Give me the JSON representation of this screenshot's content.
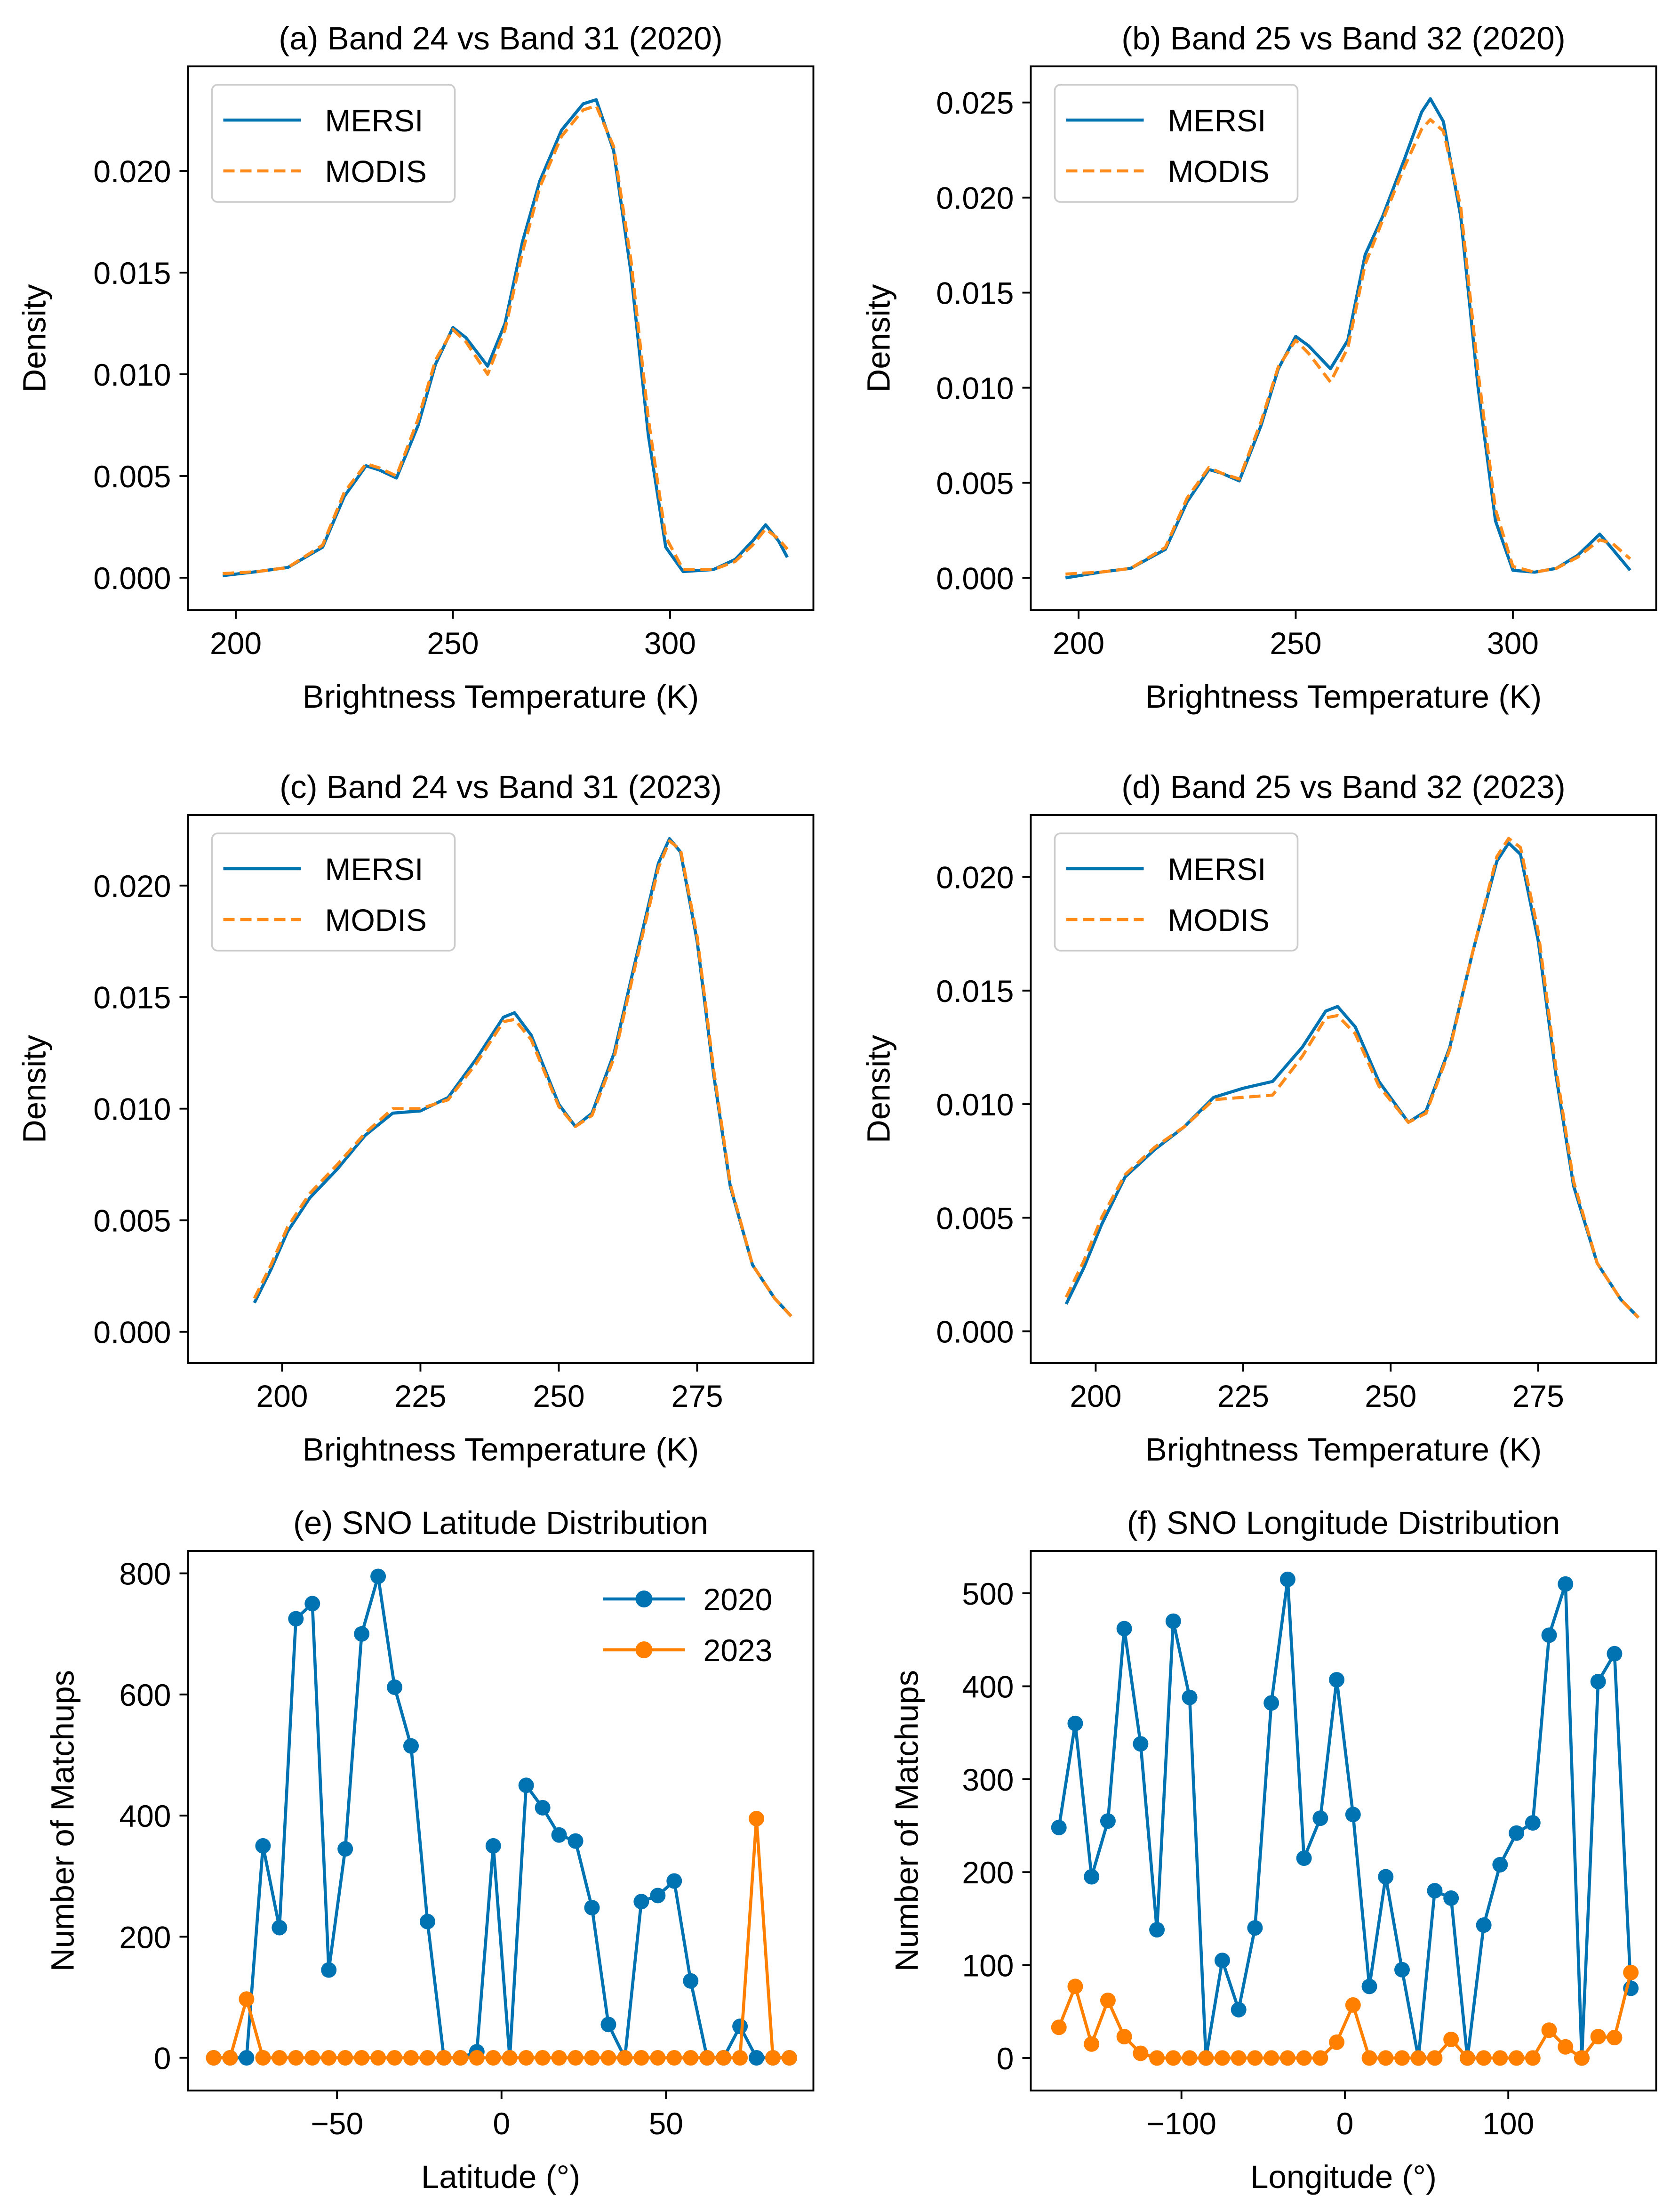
{
  "chart_data": [
    {
      "type": "line",
      "title": "(a) Band 24 vs Band 31 (2020)",
      "xlabel": "Brightness Temperature (K)",
      "ylabel": "Density",
      "xlim": [
        189,
        333
      ],
      "ylim": [
        -0.0016,
        0.02514
      ],
      "xticks": [
        200,
        250,
        300
      ],
      "xtick_labels": [
        "200",
        "250",
        "300"
      ],
      "yticks": [
        0,
        0.005,
        0.01,
        0.015,
        0.02
      ],
      "ytick_labels": [
        "0.000",
        "0.005",
        "0.010",
        "0.015",
        "0.020"
      ],
      "legend": "top-left",
      "series": [
        {
          "name": "MERSI",
          "color": "#0173b2",
          "style": "solid",
          "x": [
            197,
            205,
            212,
            220,
            225,
            230,
            233,
            237,
            242,
            246,
            250,
            253,
            258,
            262,
            266,
            270,
            275,
            280,
            283,
            287,
            291,
            295,
            299,
            303,
            310,
            315,
            319,
            322,
            325,
            327
          ],
          "y": [
            0.0001,
            0.0003,
            0.0005,
            0.0015,
            0.004,
            0.0055,
            0.0053,
            0.0049,
            0.0075,
            0.0105,
            0.0123,
            0.0118,
            0.0104,
            0.0125,
            0.0165,
            0.0195,
            0.022,
            0.0233,
            0.0235,
            0.021,
            0.015,
            0.007,
            0.0015,
            0.0003,
            0.0004,
            0.0009,
            0.0018,
            0.0026,
            0.0018,
            0.001
          ]
        },
        {
          "name": "MODIS",
          "color": "#ff8c1a",
          "style": "dashed",
          "x": [
            197,
            205,
            212,
            220,
            225,
            230,
            233,
            237,
            242,
            246,
            250,
            253,
            258,
            262,
            266,
            270,
            275,
            280,
            283,
            287,
            291,
            295,
            299,
            303,
            310,
            315,
            319,
            322,
            325,
            327
          ],
          "y": [
            0.0002,
            0.0003,
            0.0005,
            0.0016,
            0.0042,
            0.0056,
            0.0054,
            0.005,
            0.0078,
            0.0107,
            0.0122,
            0.0116,
            0.01,
            0.0122,
            0.016,
            0.0192,
            0.0217,
            0.023,
            0.0232,
            0.0212,
            0.0156,
            0.0078,
            0.002,
            0.0004,
            0.0004,
            0.0008,
            0.0016,
            0.0024,
            0.0019,
            0.0014
          ]
        }
      ]
    },
    {
      "type": "line",
      "title": "(b) Band 25 vs Band 32 (2020)",
      "xlabel": "Brightness Temperature (K)",
      "ylabel": "Density",
      "xlim": [
        189,
        333
      ],
      "ylim": [
        -0.0017,
        0.0269
      ],
      "xticks": [
        200,
        250,
        300
      ],
      "xtick_labels": [
        "200",
        "250",
        "300"
      ],
      "yticks": [
        0,
        0.005,
        0.01,
        0.015,
        0.02,
        0.025
      ],
      "ytick_labels": [
        "0.000",
        "0.005",
        "0.010",
        "0.015",
        "0.020",
        "0.025"
      ],
      "legend": "top-left",
      "series": [
        {
          "name": "MERSI",
          "color": "#0173b2",
          "style": "solid",
          "x": [
            197,
            205,
            212,
            220,
            225,
            230,
            233,
            237,
            242,
            246,
            250,
            253,
            258,
            262,
            266,
            270,
            275,
            279,
            281,
            284,
            288,
            292,
            296,
            300,
            305,
            310,
            315,
            320,
            323,
            327
          ],
          "y": [
            0.0,
            0.0003,
            0.0005,
            0.0015,
            0.004,
            0.0057,
            0.0055,
            0.0051,
            0.008,
            0.011,
            0.0127,
            0.0122,
            0.011,
            0.0125,
            0.017,
            0.019,
            0.022,
            0.0245,
            0.0252,
            0.024,
            0.019,
            0.01,
            0.003,
            0.0004,
            0.0003,
            0.0005,
            0.0012,
            0.0023,
            0.0015,
            0.0004
          ]
        },
        {
          "name": "MODIS",
          "color": "#ff8c1a",
          "style": "dashed",
          "x": [
            197,
            205,
            212,
            220,
            225,
            230,
            233,
            237,
            242,
            246,
            250,
            253,
            258,
            262,
            266,
            270,
            275,
            279,
            281,
            284,
            288,
            292,
            296,
            300,
            305,
            310,
            315,
            320,
            323,
            327
          ],
          "y": [
            0.0002,
            0.0003,
            0.0005,
            0.0016,
            0.0042,
            0.0058,
            0.0055,
            0.0052,
            0.0082,
            0.0111,
            0.0125,
            0.0118,
            0.0103,
            0.0121,
            0.0165,
            0.0188,
            0.0216,
            0.0236,
            0.0241,
            0.0235,
            0.0195,
            0.0108,
            0.0036,
            0.0006,
            0.0003,
            0.0005,
            0.0011,
            0.002,
            0.0018,
            0.001
          ]
        }
      ]
    },
    {
      "type": "line",
      "title": "(c) Band 24 vs Band 31 (2023)",
      "xlabel": "Brightness Temperature (K)",
      "ylabel": "Density",
      "xlim": [
        183,
        296
      ],
      "ylim": [
        -0.0014,
        0.02316
      ],
      "xticks": [
        200,
        225,
        250,
        275
      ],
      "xtick_labels": [
        "200",
        "225",
        "250",
        "275"
      ],
      "yticks": [
        0,
        0.005,
        0.01,
        0.015,
        0.02
      ],
      "ytick_labels": [
        "0.000",
        "0.005",
        "0.010",
        "0.015",
        "0.020"
      ],
      "legend": "top-left",
      "series": [
        {
          "name": "MERSI",
          "color": "#0173b2",
          "style": "solid",
          "x": [
            195,
            198,
            201,
            205,
            210,
            215,
            220,
            225,
            230,
            235,
            240,
            242,
            245,
            250,
            253,
            256,
            260,
            264,
            268,
            270,
            272,
            275,
            278,
            281,
            285,
            289,
            292
          ],
          "y": [
            0.0013,
            0.0028,
            0.0045,
            0.006,
            0.0073,
            0.0088,
            0.0098,
            0.0099,
            0.0105,
            0.0122,
            0.0141,
            0.0143,
            0.0133,
            0.0102,
            0.0092,
            0.0098,
            0.0125,
            0.0168,
            0.021,
            0.0221,
            0.0215,
            0.0175,
            0.0115,
            0.0065,
            0.003,
            0.0015,
            0.0007
          ]
        },
        {
          "name": "MODIS",
          "color": "#ff8c1a",
          "style": "dashed",
          "x": [
            195,
            198,
            201,
            205,
            210,
            215,
            220,
            225,
            230,
            235,
            240,
            242,
            245,
            250,
            253,
            256,
            260,
            264,
            268,
            270,
            272,
            275,
            278,
            281,
            285,
            289,
            292
          ],
          "y": [
            0.0015,
            0.003,
            0.0047,
            0.0062,
            0.0075,
            0.0089,
            0.01,
            0.01,
            0.0104,
            0.012,
            0.0139,
            0.014,
            0.0131,
            0.0101,
            0.0092,
            0.0097,
            0.0123,
            0.0166,
            0.0208,
            0.022,
            0.0216,
            0.0177,
            0.0117,
            0.0066,
            0.003,
            0.0015,
            0.0007
          ]
        }
      ]
    },
    {
      "type": "line",
      "title": "(d) Band 25 vs Band 32 (2023)",
      "xlabel": "Brightness Temperature (K)",
      "ylabel": "Density",
      "xlim": [
        189,
        295
      ],
      "ylim": [
        -0.0014,
        0.02273
      ],
      "xticks": [
        200,
        225,
        250,
        275
      ],
      "xtick_labels": [
        "200",
        "225",
        "250",
        "275"
      ],
      "yticks": [
        0,
        0.005,
        0.01,
        0.015,
        0.02
      ],
      "ytick_labels": [
        "0.000",
        "0.005",
        "0.010",
        "0.015",
        "0.020"
      ],
      "legend": "top-left",
      "series": [
        {
          "name": "MERSI",
          "color": "#0173b2",
          "style": "solid",
          "x": [
            195,
            198,
            201,
            205,
            210,
            215,
            220,
            225,
            230,
            235,
            239,
            241,
            244,
            248,
            253,
            256,
            260,
            264,
            268,
            270,
            272,
            275,
            278,
            281,
            285,
            289,
            292
          ],
          "y": [
            0.0012,
            0.0028,
            0.0047,
            0.0068,
            0.008,
            0.009,
            0.0103,
            0.0107,
            0.011,
            0.0125,
            0.0141,
            0.0143,
            0.0134,
            0.011,
            0.0092,
            0.0097,
            0.0125,
            0.0168,
            0.0207,
            0.0215,
            0.021,
            0.0172,
            0.0113,
            0.0064,
            0.003,
            0.0014,
            0.0006
          ]
        },
        {
          "name": "MODIS",
          "color": "#ff8c1a",
          "style": "dashed",
          "x": [
            195,
            198,
            201,
            205,
            210,
            215,
            220,
            225,
            230,
            235,
            239,
            241,
            244,
            248,
            253,
            256,
            260,
            264,
            268,
            270,
            272,
            275,
            278,
            281,
            285,
            289,
            292
          ],
          "y": [
            0.0015,
            0.0031,
            0.005,
            0.0069,
            0.0081,
            0.009,
            0.0102,
            0.0103,
            0.0104,
            0.0121,
            0.0138,
            0.0139,
            0.0131,
            0.0108,
            0.0092,
            0.0096,
            0.0124,
            0.0168,
            0.0209,
            0.0217,
            0.0213,
            0.0176,
            0.0116,
            0.0066,
            0.003,
            0.0014,
            0.0006
          ]
        }
      ]
    },
    {
      "type": "line",
      "title": "(e) SNO Latitude Distribution",
      "xlabel": "Latitude (°)",
      "ylabel": "Number of Matchups",
      "xlim": [
        -95.3,
        94.8
      ],
      "ylim": [
        -54,
        837
      ],
      "xticks": [
        -50,
        0,
        50
      ],
      "xtick_labels": [
        "−50",
        "0",
        "50"
      ],
      "yticks": [
        0,
        200,
        400,
        600,
        800
      ],
      "ytick_labels": [
        "0",
        "200",
        "400",
        "600",
        "800"
      ],
      "legend": "top-right",
      "markers": true,
      "series": [
        {
          "name": "2020",
          "color": "#0173b2",
          "style": "solid",
          "x": [
            -87.5,
            -82.5,
            -77.5,
            -72.5,
            -67.5,
            -62.5,
            -57.5,
            -52.5,
            -47.5,
            -42.5,
            -37.5,
            -32.5,
            -27.5,
            -22.5,
            -17.5,
            -12.5,
            -7.5,
            -2.5,
            2.5,
            7.5,
            12.5,
            17.5,
            22.5,
            27.5,
            32.5,
            37.5,
            42.5,
            47.5,
            52.5,
            57.5,
            62.5,
            67.5,
            72.5,
            77.5,
            82.5,
            87.5
          ],
          "y": [
            0,
            0,
            0,
            350,
            215,
            725,
            750,
            145,
            345,
            700,
            795,
            612,
            515,
            225,
            0,
            0,
            10,
            350,
            0,
            450,
            413,
            368,
            358,
            248,
            55,
            0,
            258,
            268,
            292,
            127,
            0,
            0,
            52,
            0,
            0,
            0
          ]
        },
        {
          "name": "2023",
          "color": "#ff8000",
          "style": "solid",
          "x": [
            -87.5,
            -82.5,
            -77.5,
            -72.5,
            -67.5,
            -62.5,
            -57.5,
            -52.5,
            -47.5,
            -42.5,
            -37.5,
            -32.5,
            -27.5,
            -22.5,
            -17.5,
            -12.5,
            -7.5,
            -2.5,
            2.5,
            7.5,
            12.5,
            17.5,
            22.5,
            27.5,
            32.5,
            37.5,
            42.5,
            47.5,
            52.5,
            57.5,
            62.5,
            67.5,
            72.5,
            77.5,
            82.5,
            87.5
          ],
          "y": [
            0,
            0,
            97,
            0,
            0,
            0,
            0,
            0,
            0,
            0,
            0,
            0,
            0,
            0,
            0,
            0,
            0,
            0,
            0,
            0,
            0,
            0,
            0,
            0,
            0,
            0,
            0,
            0,
            0,
            0,
            0,
            0,
            0,
            395,
            0,
            0
          ]
        }
      ]
    },
    {
      "type": "line",
      "title": "(f) SNO Longitude Distribution",
      "xlabel": "Longitude (°)",
      "ylabel": "Number of Matchups",
      "xlim": [
        -192.2,
        190.5
      ],
      "ylim": [
        -35,
        545.6
      ],
      "xticks": [
        -100,
        0,
        100
      ],
      "xtick_labels": [
        "−100",
        "0",
        "100"
      ],
      "yticks": [
        0,
        100,
        200,
        300,
        400,
        500
      ],
      "ytick_labels": [
        "0",
        "100",
        "200",
        "300",
        "400",
        "500"
      ],
      "legend": "none",
      "markers": true,
      "series": [
        {
          "name": "2020",
          "color": "#0173b2",
          "style": "solid",
          "x": [
            -175,
            -165,
            -155,
            -145,
            -135,
            -125,
            -115,
            -105,
            -95,
            -85,
            -75,
            -65,
            -55,
            -45,
            -35,
            -25,
            -15,
            -5,
            5,
            15,
            25,
            35,
            45,
            55,
            65,
            75,
            85,
            95,
            105,
            115,
            125,
            135,
            145,
            155,
            165,
            175
          ],
          "y": [
            248,
            360,
            195,
            255,
            462,
            338,
            138,
            470,
            388,
            0,
            105,
            52,
            140,
            382,
            515,
            215,
            258,
            407,
            262,
            77,
            195,
            95,
            0,
            180,
            172,
            0,
            143,
            208,
            242,
            253,
            455,
            510,
            0,
            405,
            435,
            75
          ]
        },
        {
          "name": "2023",
          "color": "#ff8000",
          "style": "solid",
          "x": [
            -175,
            -165,
            -155,
            -145,
            -135,
            -125,
            -115,
            -105,
            -95,
            -85,
            -75,
            -65,
            -55,
            -45,
            -35,
            -25,
            -15,
            -5,
            5,
            15,
            25,
            35,
            45,
            55,
            65,
            75,
            85,
            95,
            105,
            115,
            125,
            135,
            145,
            155,
            165,
            175
          ],
          "y": [
            33,
            77,
            15,
            62,
            23,
            5,
            0,
            0,
            0,
            0,
            0,
            0,
            0,
            0,
            0,
            0,
            0,
            17,
            57,
            0,
            0,
            0,
            0,
            0,
            20,
            0,
            0,
            0,
            0,
            0,
            30,
            12,
            0,
            23,
            22,
            92
          ]
        }
      ]
    }
  ]
}
